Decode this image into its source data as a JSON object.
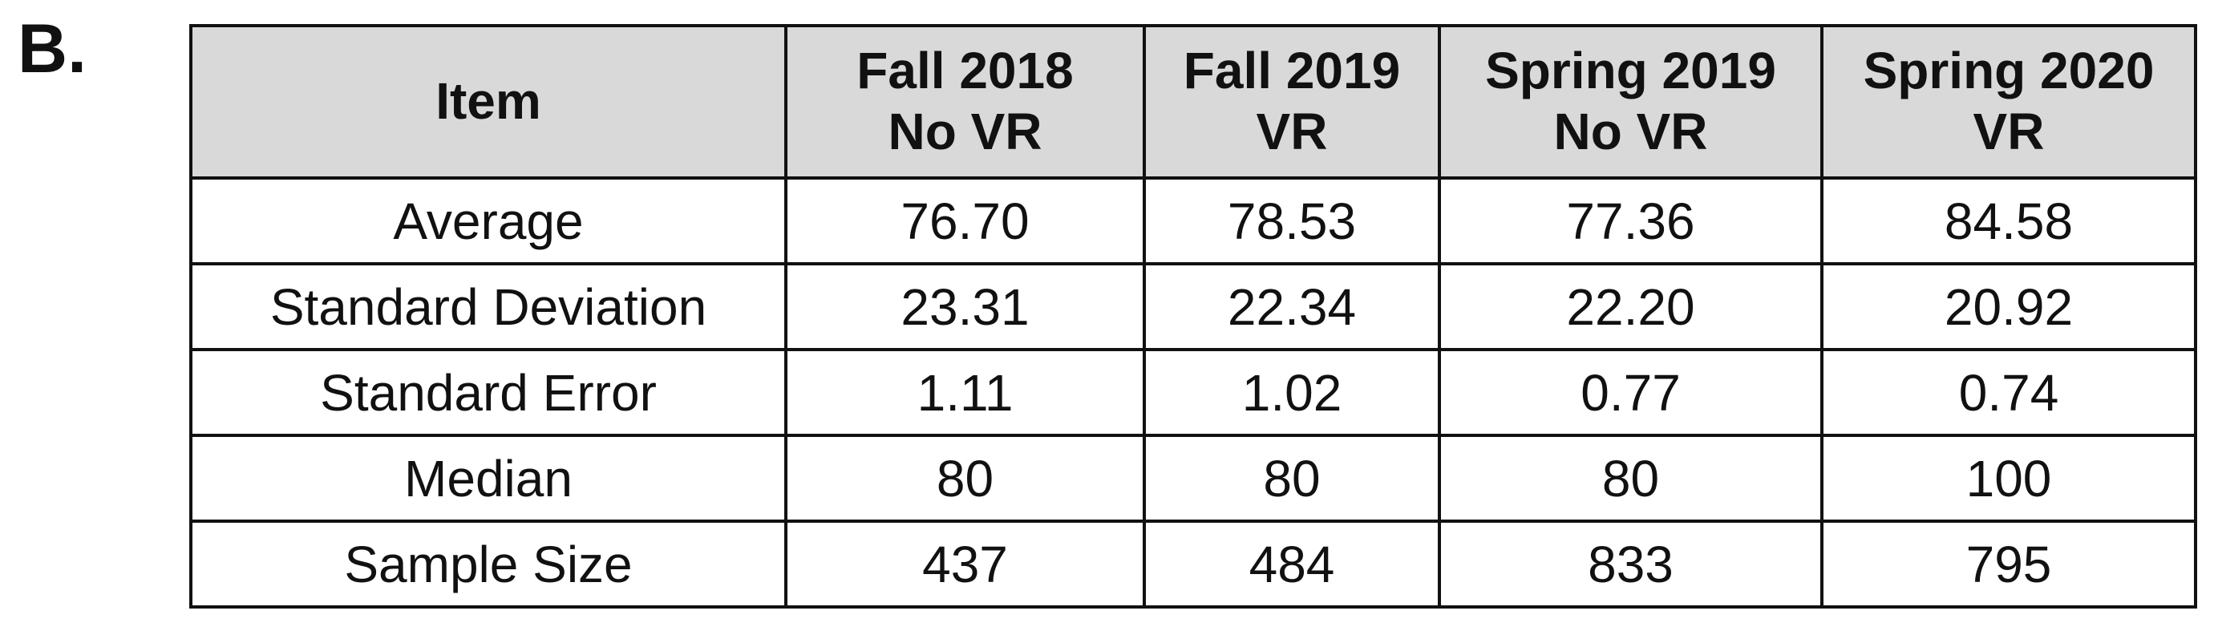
{
  "panel_label": "B.",
  "table": {
    "headers": [
      {
        "lines": [
          "Item"
        ]
      },
      {
        "lines": [
          "Fall 2018",
          "No VR"
        ]
      },
      {
        "lines": [
          "Fall 2019",
          "VR"
        ]
      },
      {
        "lines": [
          "Spring 2019",
          "No VR"
        ]
      },
      {
        "lines": [
          "Spring 2020",
          "VR"
        ]
      }
    ],
    "rows": [
      {
        "cells": [
          "Average",
          "76.70",
          "78.53",
          "77.36",
          "84.58"
        ]
      },
      {
        "cells": [
          "Standard Deviation",
          "23.31",
          "22.34",
          "22.20",
          "20.92"
        ]
      },
      {
        "cells": [
          "Standard Error",
          "1.11",
          "1.02",
          "0.77",
          "0.74"
        ]
      },
      {
        "cells": [
          "Median",
          "80",
          "80",
          "80",
          "100"
        ]
      },
      {
        "cells": [
          "Sample Size",
          "437",
          "484",
          "833",
          "795"
        ]
      }
    ]
  }
}
